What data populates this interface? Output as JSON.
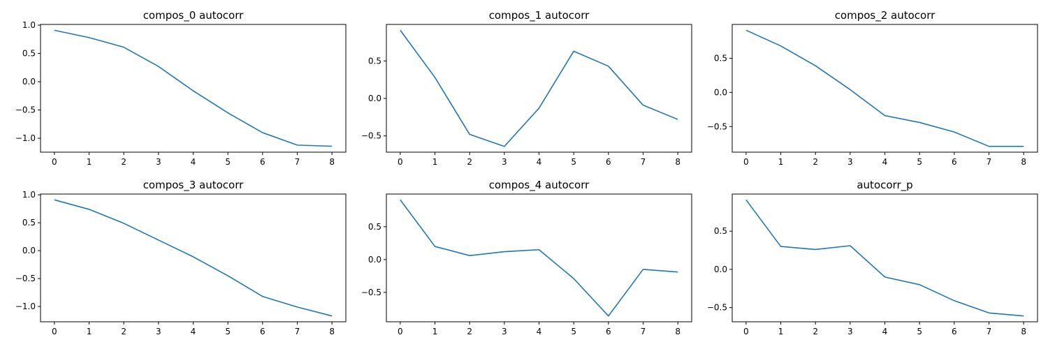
{
  "line_color": "#1f77b4",
  "chart_data": [
    {
      "type": "line",
      "title": "compos_0 autocorr",
      "x": [
        0,
        1,
        2,
        3,
        4,
        5,
        6,
        7,
        8
      ],
      "series": [
        {
          "values": [
            0.91,
            0.78,
            0.61,
            0.27,
            -0.16,
            -0.55,
            -0.9,
            -1.12,
            -1.14
          ]
        }
      ],
      "xticks": [
        "0",
        "1",
        "2",
        "3",
        "4",
        "5",
        "6",
        "7",
        "8"
      ],
      "yticks": [
        1.0,
        0.5,
        0.0,
        -0.5,
        -1.0
      ],
      "ytick_labels": [
        "1.0",
        "0.5",
        "0.0",
        "−0.5",
        "−1.0"
      ],
      "xlim": [
        -0.4,
        8.4
      ],
      "ylim": [
        -1.245,
        1.013
      ],
      "grid": false
    },
    {
      "type": "line",
      "title": "compos_1 autocorr",
      "x": [
        0,
        1,
        2,
        3,
        4,
        5,
        6,
        7,
        8
      ],
      "series": [
        {
          "values": [
            0.91,
            0.28,
            -0.48,
            -0.64,
            -0.13,
            0.63,
            0.43,
            -0.09,
            -0.28
          ]
        }
      ],
      "xticks": [
        "0",
        "1",
        "2",
        "3",
        "4",
        "5",
        "6",
        "7",
        "8"
      ],
      "yticks": [
        0.5,
        0.0,
        -0.5
      ],
      "ytick_labels": [
        "0.5",
        "0.0",
        "−0.5"
      ],
      "xlim": [
        -0.4,
        8.4
      ],
      "ylim": [
        -0.717,
        0.987
      ],
      "grid": false
    },
    {
      "type": "line",
      "title": "compos_2 autocorr",
      "x": [
        0,
        1,
        2,
        3,
        4,
        5,
        6,
        7,
        8
      ],
      "series": [
        {
          "values": [
            0.91,
            0.68,
            0.39,
            0.04,
            -0.34,
            -0.44,
            -0.58,
            -0.79,
            -0.79
          ]
        }
      ],
      "xticks": [
        "0",
        "1",
        "2",
        "3",
        "4",
        "5",
        "6",
        "7",
        "8"
      ],
      "yticks": [
        0.5,
        0.0,
        -0.5
      ],
      "ytick_labels": [
        "0.5",
        "0.0",
        "−0.5"
      ],
      "xlim": [
        -0.4,
        8.4
      ],
      "ylim": [
        -0.875,
        0.995
      ],
      "grid": false
    },
    {
      "type": "line",
      "title": "compos_3 autocorr",
      "x": [
        0,
        1,
        2,
        3,
        4,
        5,
        6,
        7,
        8
      ],
      "series": [
        {
          "values": [
            0.91,
            0.74,
            0.49,
            0.19,
            -0.11,
            -0.45,
            -0.82,
            -1.01,
            -1.17
          ]
        }
      ],
      "xticks": [
        "0",
        "1",
        "2",
        "3",
        "4",
        "5",
        "6",
        "7",
        "8"
      ],
      "yticks": [
        1.0,
        0.5,
        0.0,
        -0.5,
        -1.0
      ],
      "ytick_labels": [
        "1.0",
        "0.5",
        "0.0",
        "−0.5",
        "−1.0"
      ],
      "xlim": [
        -0.4,
        8.4
      ],
      "ylim": [
        -1.274,
        1.014
      ],
      "grid": false
    },
    {
      "type": "line",
      "title": "compos_4 autocorr",
      "x": [
        0,
        1,
        2,
        3,
        4,
        5,
        6,
        7,
        8
      ],
      "series": [
        {
          "values": [
            0.91,
            0.2,
            0.06,
            0.12,
            0.15,
            -0.29,
            -0.86,
            -0.15,
            -0.19
          ]
        }
      ],
      "xticks": [
        "0",
        "1",
        "2",
        "3",
        "4",
        "5",
        "6",
        "7",
        "8"
      ],
      "yticks": [
        0.5,
        0.0,
        -0.5
      ],
      "ytick_labels": [
        "0.5",
        "0.0",
        "−0.5"
      ],
      "xlim": [
        -0.4,
        8.4
      ],
      "ylim": [
        -0.948,
        0.998
      ],
      "grid": false
    },
    {
      "type": "line",
      "title": "autocorr_p",
      "x": [
        0,
        1,
        2,
        3,
        4,
        5,
        6,
        7,
        8
      ],
      "series": [
        {
          "values": [
            0.91,
            0.3,
            0.26,
            0.31,
            -0.1,
            -0.2,
            -0.41,
            -0.57,
            -0.61
          ]
        }
      ],
      "xticks": [
        "0",
        "1",
        "2",
        "3",
        "4",
        "5",
        "6",
        "7",
        "8"
      ],
      "yticks": [
        0.5,
        0.0,
        -0.5
      ],
      "ytick_labels": [
        "0.5",
        "0.0",
        "−0.5"
      ],
      "xlim": [
        -0.4,
        8.4
      ],
      "ylim": [
        -0.686,
        0.986
      ],
      "grid": false
    }
  ]
}
